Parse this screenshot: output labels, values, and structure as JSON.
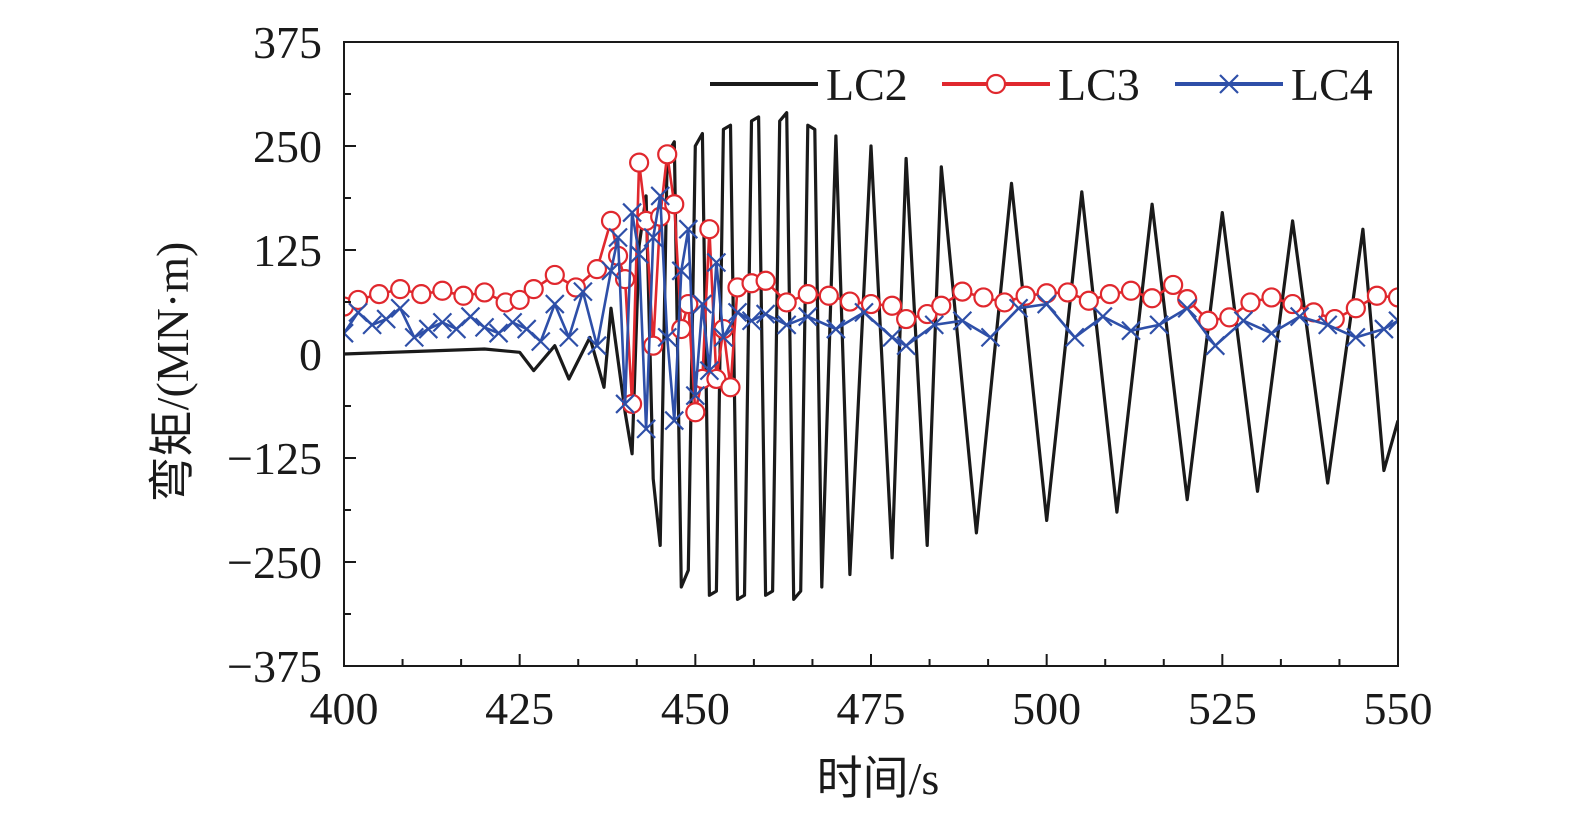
{
  "chart_data": {
    "type": "line",
    "title": "",
    "xlabel": "时间/s",
    "ylabel": "弯矩/(MN·m)",
    "xlim": [
      400,
      550
    ],
    "ylim": [
      -375,
      375
    ],
    "xticks": [
      400,
      425,
      450,
      475,
      500,
      525,
      550
    ],
    "yticks": [
      375,
      250,
      125,
      0,
      -125,
      -250,
      -375
    ],
    "xtick_labels": [
      "400",
      "425",
      "450",
      "475",
      "500",
      "525",
      "550"
    ],
    "ytick_labels": [
      "375",
      "250",
      "125",
      "0",
      "−125",
      "−250",
      "−375"
    ],
    "minor_ticks": true,
    "grid": false,
    "legend_position": "top-right",
    "series": [
      {
        "name": "LC2",
        "color": "#1a1a1a",
        "marker": "none",
        "x": [
          400,
          410,
          420,
          425,
          427,
          430,
          432,
          435,
          437,
          438,
          440,
          441,
          442,
          443,
          444,
          445,
          446,
          447,
          448,
          449,
          450,
          451,
          452,
          453,
          454,
          455,
          456,
          457,
          458,
          459,
          460,
          461,
          462,
          463,
          464,
          465,
          466,
          467,
          468,
          470,
          472,
          475,
          478,
          480,
          483,
          485,
          490,
          495,
          500,
          505,
          510,
          515,
          520,
          525,
          530,
          535,
          540,
          545,
          548,
          550
        ],
        "values": [
          0,
          3,
          6,
          2,
          -20,
          10,
          -30,
          20,
          -40,
          55,
          -70,
          -120,
          130,
          190,
          -150,
          -230,
          240,
          255,
          -280,
          -260,
          250,
          265,
          -290,
          -285,
          270,
          275,
          -295,
          -290,
          280,
          285,
          -290,
          -285,
          280,
          290,
          -295,
          -285,
          275,
          270,
          -280,
          262,
          -265,
          250,
          -245,
          235,
          -230,
          225,
          -215,
          205,
          -200,
          195,
          -190,
          180,
          -175,
          170,
          -165,
          160,
          -155,
          150,
          -140,
          -80
        ]
      },
      {
        "name": "LC3",
        "color": "#e0282e",
        "marker": "circle",
        "x": [
          400,
          402,
          405,
          408,
          411,
          414,
          417,
          420,
          423,
          425,
          427,
          430,
          433,
          436,
          438,
          439,
          440,
          441,
          442,
          443,
          444,
          445,
          446,
          447,
          448,
          449,
          450,
          451,
          452,
          453,
          454,
          455,
          456,
          458,
          460,
          463,
          466,
          469,
          472,
          475,
          478,
          480,
          483,
          485,
          488,
          491,
          494,
          497,
          500,
          503,
          506,
          509,
          512,
          515,
          518,
          520,
          523,
          526,
          529,
          532,
          535,
          538,
          541,
          544,
          547,
          550
        ],
        "values": [
          57,
          65,
          72,
          78,
          72,
          76,
          70,
          74,
          62,
          65,
          78,
          95,
          80,
          102,
          160,
          118,
          90,
          -60,
          230,
          160,
          10,
          165,
          240,
          180,
          30,
          60,
          -70,
          -30,
          150,
          -30,
          30,
          -40,
          80,
          85,
          88,
          62,
          72,
          70,
          63,
          60,
          58,
          42,
          48,
          58,
          75,
          68,
          62,
          70,
          73,
          74,
          64,
          72,
          76,
          67,
          83,
          66,
          40,
          44,
          62,
          68,
          60,
          50,
          42,
          55,
          70,
          68
        ]
      },
      {
        "name": "LC4",
        "color": "#2e4fa8",
        "marker": "cross",
        "x": [
          400,
          402,
          404,
          406,
          408,
          410,
          412,
          414,
          416,
          418,
          420,
          422,
          424,
          426,
          428,
          430,
          432,
          434,
          436,
          438,
          439,
          440,
          441,
          442,
          443,
          444,
          445,
          446,
          447,
          448,
          449,
          450,
          451,
          452,
          453,
          454,
          456,
          458,
          460,
          463,
          466,
          470,
          474,
          478,
          480,
          484,
          488,
          492,
          496,
          500,
          504,
          508,
          512,
          516,
          520,
          524,
          528,
          532,
          536,
          540,
          544,
          548,
          550
        ],
        "values": [
          25,
          50,
          35,
          42,
          55,
          20,
          30,
          38,
          30,
          45,
          32,
          25,
          38,
          30,
          15,
          60,
          20,
          75,
          10,
          100,
          140,
          -60,
          170,
          120,
          -90,
          140,
          190,
          20,
          -80,
          100,
          150,
          -50,
          60,
          -20,
          110,
          20,
          50,
          40,
          48,
          35,
          45,
          30,
          50,
          20,
          10,
          35,
          40,
          20,
          55,
          60,
          20,
          45,
          28,
          35,
          55,
          10,
          40,
          25,
          45,
          35,
          20,
          30,
          40
        ]
      }
    ]
  }
}
